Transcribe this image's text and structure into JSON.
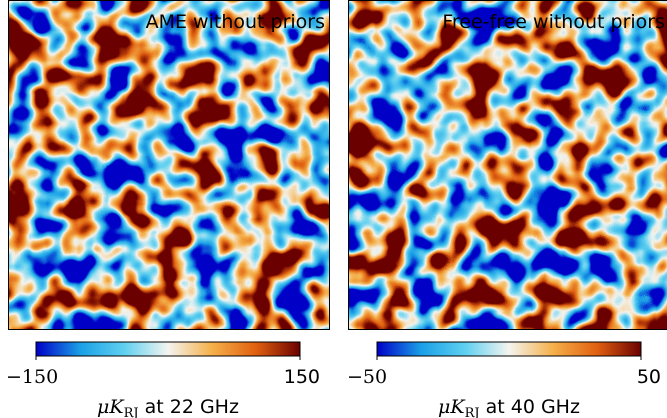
{
  "chart_data": [
    {
      "type": "image",
      "title": "AME without priors",
      "colormap": [
        "#0000c8",
        "#1a9fe6",
        "#5fd0f0",
        "#f4f4f0",
        "#f5b04a",
        "#e06010",
        "#6b0000"
      ],
      "colorbar_lim": [
        -150,
        150
      ],
      "colorbar_ticks": [
        {
          "value": -150,
          "label": "−150"
        },
        150
      ],
      "colorbar_unit": "μK",
      "colorbar_unit_sub": "RJ",
      "colorbar_label": "at 22 GHz"
    },
    {
      "type": "image",
      "title": "Free-free without priors",
      "colormap": [
        "#0000c8",
        "#1a9fe6",
        "#5fd0f0",
        "#f4f4f0",
        "#f5b04a",
        "#e06010",
        "#6b0000"
      ],
      "colorbar_lim": [
        -50,
        50
      ],
      "colorbar_ticks": [
        {
          "value": -50,
          "label": "−50"
        },
        50
      ],
      "colorbar_unit": "μK",
      "colorbar_unit_sub": "RJ",
      "colorbar_label": "at 40 GHz"
    }
  ]
}
